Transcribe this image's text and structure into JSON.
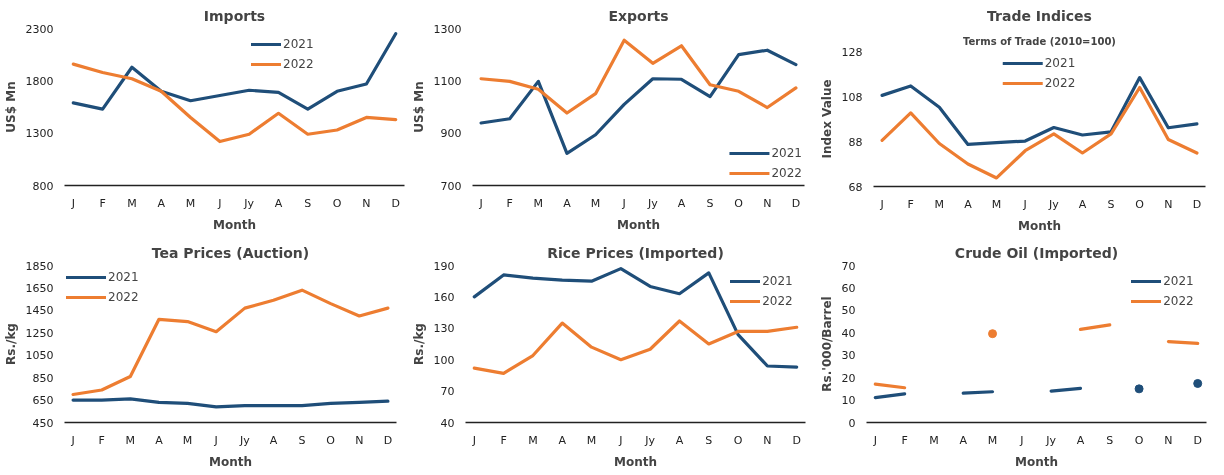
{
  "chart_data": [
    {
      "type": "line",
      "title": "Imports",
      "xlabel": "Month",
      "ylabel": "US$ Mn",
      "categories": [
        "J",
        "F",
        "M",
        "A",
        "M",
        "J",
        "Jy",
        "A",
        "S",
        "O",
        "N",
        "D"
      ],
      "ylim": [
        800,
        2300
      ],
      "yticks": [
        800,
        1300,
        1800,
        2300
      ],
      "grid": false,
      "legend": "top right",
      "series": [
        {
          "name": "2021",
          "color": "#1f4e79",
          "values": [
            1590,
            1530,
            1930,
            1700,
            1610,
            1660,
            1710,
            1690,
            1530,
            1700,
            1770,
            2250
          ]
        },
        {
          "name": "2022",
          "color": "#ed7d31",
          "values": [
            1960,
            1880,
            1820,
            1700,
            1450,
            1220,
            1290,
            1490,
            1290,
            1330,
            1450,
            1430
          ]
        }
      ]
    },
    {
      "type": "line",
      "title": "Exports",
      "xlabel": "Month",
      "ylabel": "US$ Mn",
      "categories": [
        "J",
        "F",
        "M",
        "A",
        "M",
        "J",
        "Jy",
        "A",
        "S",
        "O",
        "N",
        "D"
      ],
      "ylim": [
        700,
        1300
      ],
      "yticks": [
        700,
        900,
        1100,
        1300
      ],
      "grid": false,
      "legend": "bottom right",
      "series": [
        {
          "name": "2021",
          "color": "#1f4e79",
          "values": [
            939,
            955,
            1098,
            823,
            894,
            1010,
            1108,
            1106,
            1040,
            1200,
            1217,
            1162
          ]
        },
        {
          "name": "2022",
          "color": "#ed7d31",
          "values": [
            1108,
            1098,
            1068,
            977,
            1051,
            1255,
            1167,
            1234,
            1085,
            1060,
            998,
            1073
          ]
        }
      ]
    },
    {
      "type": "line",
      "title": "Trade Indices",
      "subtitle": "Terms of Trade (2010=100)",
      "xlabel": "Month",
      "ylabel": "Index Value",
      "categories": [
        "J",
        "F",
        "M",
        "A",
        "M",
        "J",
        "Jy",
        "A",
        "S",
        "O",
        "N",
        "D"
      ],
      "ylim": [
        68,
        128
      ],
      "yticks": [
        68,
        88,
        108,
        128
      ],
      "grid": false,
      "legend": "top",
      "series": [
        {
          "name": "2021",
          "color": "#1f4e79",
          "values": [
            108.5,
            112.7,
            103.2,
            86.7,
            87.5,
            88.2,
            94.2,
            90.9,
            92.3,
            116.4,
            94.1,
            95.8
          ]
        },
        {
          "name": "2022",
          "color": "#ed7d31",
          "values": [
            88.5,
            100.7,
            87.1,
            78.0,
            71.8,
            83.9,
            91.4,
            82.9,
            91.4,
            112.0,
            88.9,
            82.9
          ]
        }
      ]
    },
    {
      "type": "line",
      "title": "Tea Prices (Auction)",
      "xlabel": "Month",
      "ylabel": "Rs./kg",
      "categories": [
        "J",
        "F",
        "M",
        "A",
        "M",
        "J",
        "Jy",
        "A",
        "S",
        "O",
        "N",
        "D"
      ],
      "ylim": [
        450,
        1850
      ],
      "yticks": [
        450,
        650,
        850,
        1050,
        1250,
        1450,
        1650,
        1850
      ],
      "grid": false,
      "legend": "top left",
      "series": [
        {
          "name": "2021",
          "color": "#1f4e79",
          "values": [
            650,
            650,
            660,
            630,
            620,
            590,
            600,
            600,
            600,
            620,
            630,
            640
          ]
        },
        {
          "name": "2022",
          "color": "#ed7d31",
          "values": [
            700,
            740,
            860,
            1370,
            1350,
            1260,
            1470,
            1540,
            1630,
            1510,
            1400,
            1470
          ]
        }
      ]
    },
    {
      "type": "line",
      "title": "Rice Prices (Imported)",
      "xlabel": "Month",
      "ylabel": "Rs./kg",
      "categories": [
        "J",
        "F",
        "M",
        "A",
        "M",
        "J",
        "Jy",
        "A",
        "S",
        "O",
        "N",
        "D"
      ],
      "ylim": [
        40,
        190
      ],
      "yticks": [
        40,
        70,
        100,
        130,
        160,
        190
      ],
      "grid": false,
      "legend": "top right",
      "series": [
        {
          "name": "2021",
          "color": "#1f4e79",
          "values": [
            160,
            181,
            178,
            176,
            175,
            187,
            170,
            163,
            183,
            124,
            94,
            93
          ]
        },
        {
          "name": "2022",
          "color": "#ed7d31",
          "values": [
            92,
            87,
            104,
            135,
            112,
            100,
            110,
            137,
            115,
            127,
            127,
            131
          ]
        }
      ]
    },
    {
      "type": "line",
      "title": "Crude Oil (Imported)",
      "xlabel": "Month",
      "ylabel": "Rs.'000/Barrel",
      "categories": [
        "J",
        "F",
        "M",
        "A",
        "M",
        "J",
        "Jy",
        "A",
        "S",
        "O",
        "N",
        "D"
      ],
      "ylim": [
        0,
        70
      ],
      "yticks": [
        0,
        10,
        20,
        30,
        40,
        50,
        60,
        70
      ],
      "grid": false,
      "legend": "top right",
      "series": [
        {
          "name": "2021",
          "color": "#1f4e79",
          "values": [
            11.1,
            12.8,
            null,
            13.1,
            13.7,
            null,
            14.0,
            15.2,
            null,
            15.0,
            null,
            17.4
          ]
        },
        {
          "name": "2022",
          "color": "#ed7d31",
          "values": [
            17.1,
            15.5,
            null,
            null,
            39.6,
            null,
            null,
            41.5,
            43.5,
            null,
            36.1,
            35.3
          ]
        }
      ]
    }
  ]
}
